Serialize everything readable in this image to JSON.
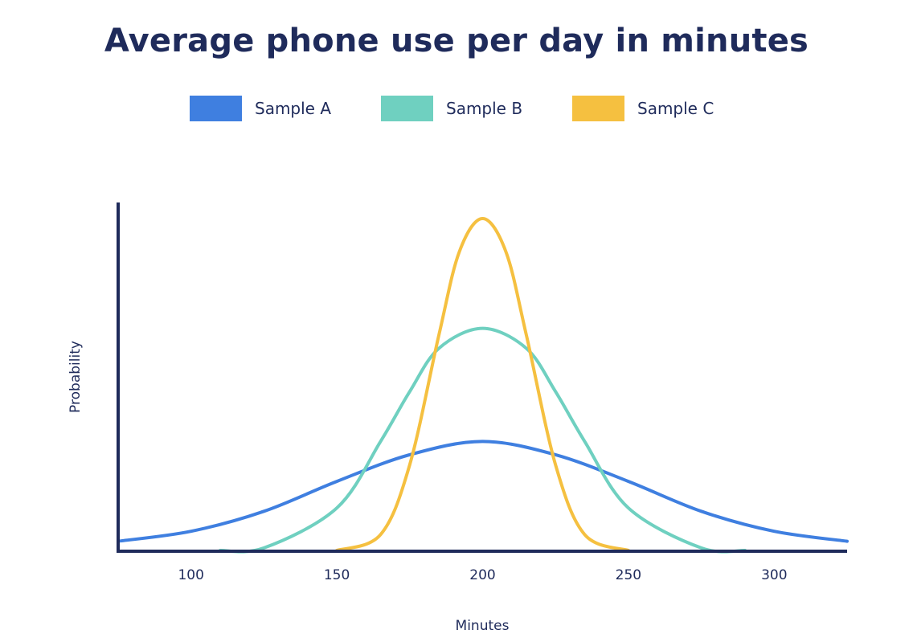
{
  "chart_data": {
    "type": "line",
    "title": "Average phone use per day in minutes",
    "xlabel": "Minutes",
    "ylabel": "Probability",
    "xlim": [
      75,
      325
    ],
    "ylim": [
      0,
      1
    ],
    "x_ticks": [
      100,
      150,
      200,
      250,
      300
    ],
    "grid": false,
    "legend_position": "top",
    "series": [
      {
        "name": "Sample A",
        "color": "#3f7fe0",
        "x": [
          75,
          100,
          125,
          150,
          175,
          200,
          225,
          250,
          275,
          300,
          325
        ],
        "y": [
          0.03,
          0.06,
          0.12,
          0.21,
          0.29,
          0.33,
          0.29,
          0.21,
          0.12,
          0.06,
          0.03
        ]
      },
      {
        "name": "Sample B",
        "color": "#6fd0c0",
        "x": [
          110,
          125,
          150,
          165,
          175,
          185,
          200,
          215,
          225,
          235,
          250,
          275,
          290
        ],
        "y": [
          0.0,
          0.01,
          0.13,
          0.33,
          0.48,
          0.61,
          0.67,
          0.61,
          0.48,
          0.33,
          0.13,
          0.01,
          0.0
        ]
      },
      {
        "name": "Sample C",
        "color": "#f5c040",
        "x": [
          150,
          165,
          175,
          185,
          192,
          200,
          208,
          215,
          225,
          235,
          250
        ],
        "y": [
          0.0,
          0.05,
          0.26,
          0.65,
          0.9,
          1.0,
          0.9,
          0.65,
          0.26,
          0.05,
          0.0
        ]
      }
    ]
  }
}
